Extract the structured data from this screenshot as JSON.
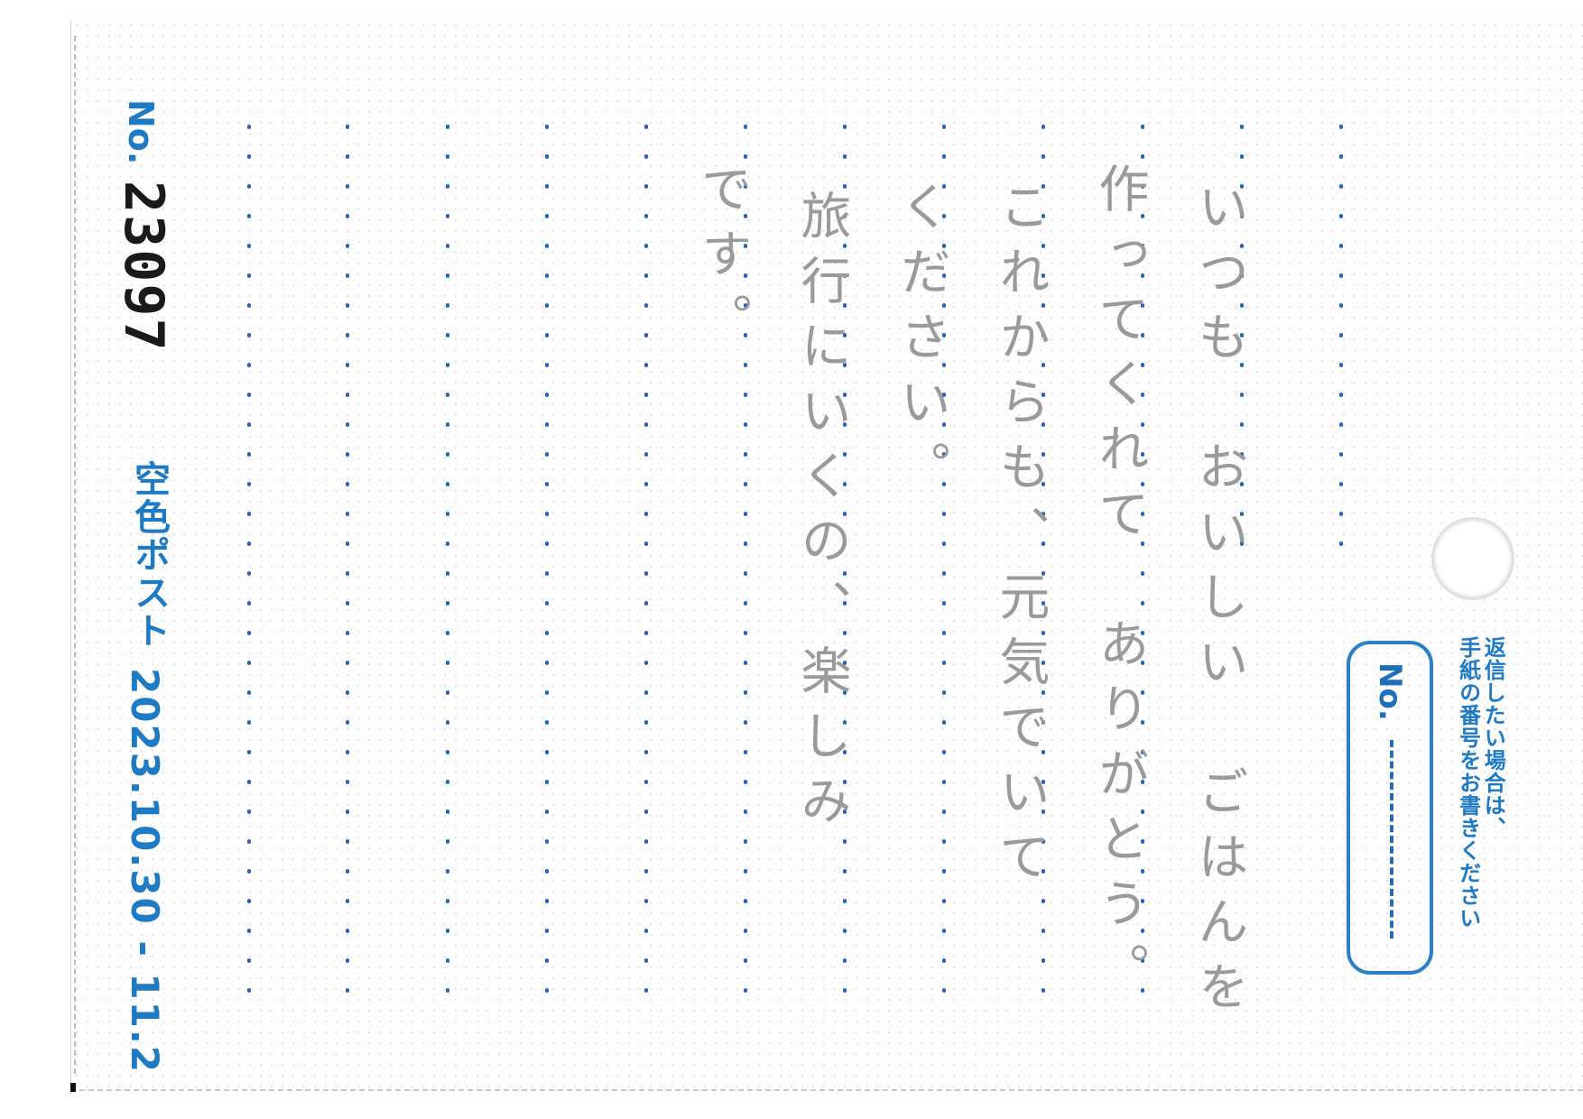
{
  "card": {
    "number_label": "No.",
    "serial_number": "23097",
    "brand": "空色ポスト",
    "date_range": "2023.10.30 - 11.2"
  },
  "message_lines": [
    "いつも　おいしい　ごはんを",
    "作ってくれて　ありがとう。",
    "これからも、元気でいて",
    "ください。",
    "旅行にいくの、楽しみ",
    "です。"
  ],
  "reply": {
    "note_lines": [
      "返信したい場合は、",
      "手紙の番号をお書きください"
    ],
    "number_label": "No."
  },
  "colors": {
    "accent": "#1f7ac4",
    "dots": "#2866b5",
    "pencil": "#9a9a9a"
  }
}
